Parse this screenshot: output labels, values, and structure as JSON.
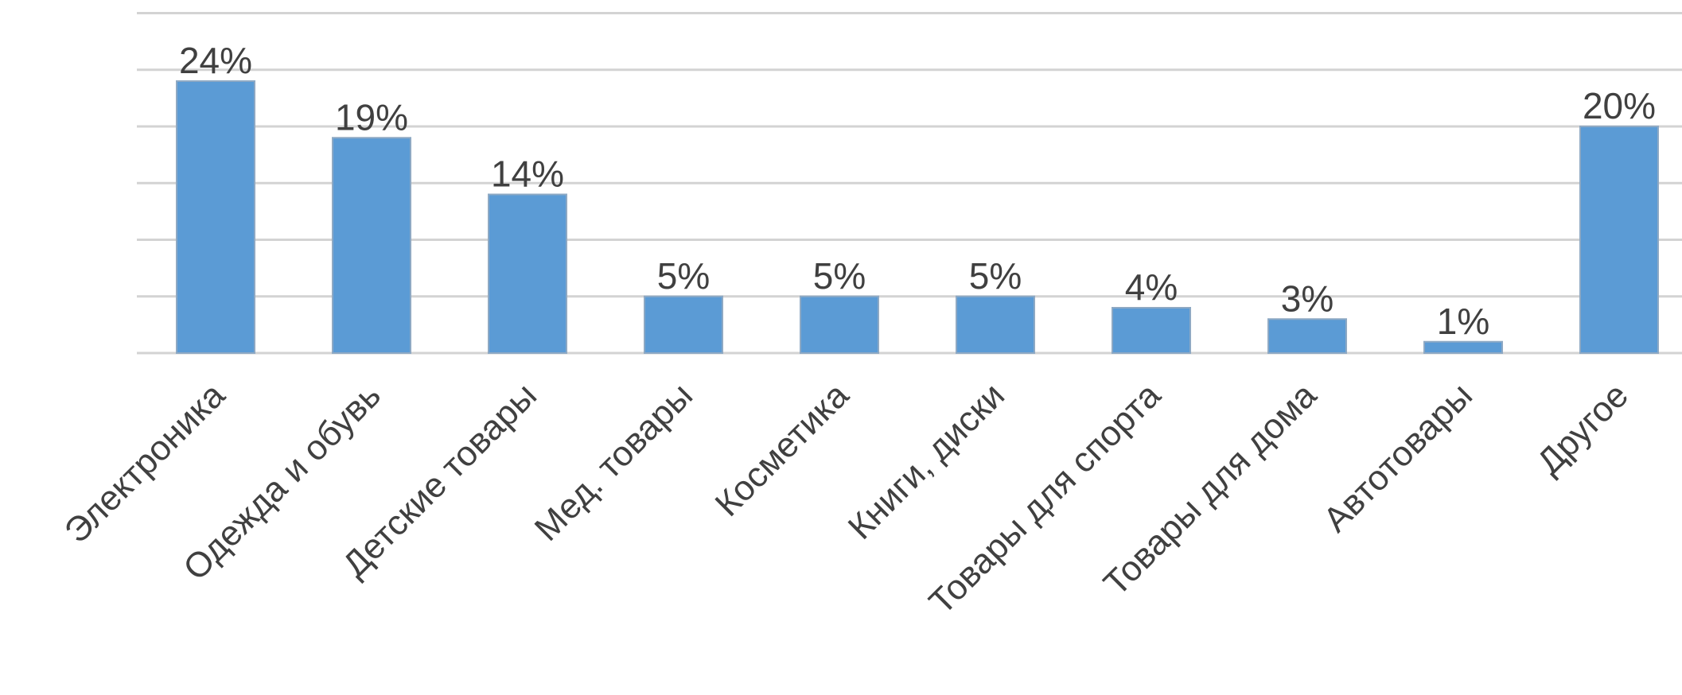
{
  "chart_data": {
    "type": "bar",
    "categories": [
      "Электроника",
      "Одежда и обувь",
      "Детские товары",
      "Мед. товары",
      "Косметика",
      "Книги, диски",
      "Товары для спорта",
      "Товары для дома",
      "Автотовары",
      "Другое"
    ],
    "values": [
      24,
      19,
      14,
      5,
      5,
      5,
      4,
      3,
      1,
      20
    ],
    "value_labels": [
      "24%",
      "19%",
      "14%",
      "5%",
      "5%",
      "5%",
      "4%",
      "3%",
      "1%",
      "20%"
    ],
    "ylim": [
      0,
      30
    ],
    "y_gridline_step": 5,
    "grid": true,
    "legend": "none",
    "colors": {
      "bar": "#5b9bd5",
      "gridline": "#d3d3d3",
      "text": "#404040"
    }
  }
}
